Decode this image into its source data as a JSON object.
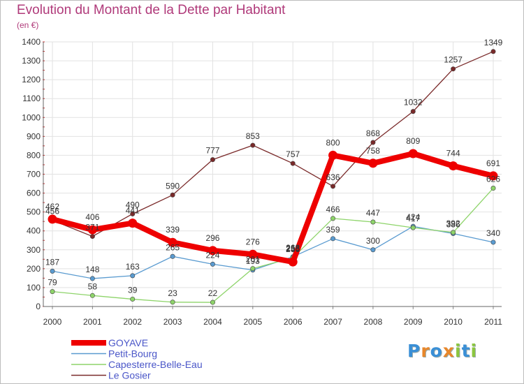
{
  "title": "Evolution du Montant de la Dette par Habitant",
  "subtitle": "(en €)",
  "logo": {
    "letters": [
      "P",
      "r",
      "o",
      "x",
      "i",
      "t",
      "i"
    ],
    "colors": [
      "#3a8fd6",
      "#e8872b",
      "#3a8fd6",
      "#e8872b",
      "#8cc63f",
      "#3a8fd6",
      "#8cc63f"
    ]
  },
  "chart_data": {
    "type": "line",
    "title": "Evolution du Montant de la Dette par Habitant",
    "ylabel": "(en €)",
    "xlabel": "",
    "x": [
      "2000",
      "2001",
      "2002",
      "2003",
      "2004",
      "2005",
      "2006",
      "2007",
      "2008",
      "2009",
      "2010",
      "2011"
    ],
    "ylim": [
      0,
      1400
    ],
    "yticks": [
      0,
      100,
      200,
      300,
      400,
      500,
      600,
      700,
      800,
      900,
      1000,
      1100,
      1200,
      1300,
      1400
    ],
    "grid": true,
    "legend": "bottom-left",
    "series": [
      {
        "name": "Le Gosier",
        "color": "#7a2a2a",
        "values": [
          456,
          371,
          490,
          590,
          777,
          853,
          757,
          636,
          868,
          1032,
          1257,
          1349
        ],
        "labels": [
          "456",
          "371",
          "490",
          "590",
          "777",
          "853",
          "757",
          "636",
          "868",
          "1032",
          "1257",
          "1349"
        ]
      },
      {
        "name": "Petit-Bourg",
        "color": "#5a9bd0",
        "values": [
          187,
          148,
          163,
          265,
          224,
          193,
          263,
          359,
          300,
          424,
          386,
          340
        ],
        "labels": [
          "187",
          "148",
          "163",
          "265",
          "224",
          "193",
          "263",
          "359",
          "300",
          "424",
          "386",
          "340"
        ]
      },
      {
        "name": "Capesterre-Belle-Eau",
        "color": "#8ed46a",
        "values": [
          79,
          58,
          39,
          23,
          22,
          201,
          258,
          466,
          447,
          417,
          392,
          626
        ],
        "labels": [
          "79",
          "58",
          "39",
          "23",
          "22",
          "201",
          "258",
          "466",
          "447",
          "417",
          "392",
          "626"
        ]
      },
      {
        "name": "GOYAVE",
        "color": "#ee0000",
        "values": [
          462,
          406,
          441,
          339,
          296,
          276,
          236,
          800,
          758,
          809,
          744,
          691
        ],
        "labels": [
          "462",
          "406",
          "441",
          "339",
          "296",
          "276",
          "236",
          "800",
          "758",
          "809",
          "744",
          "691"
        ]
      }
    ],
    "legend_order": [
      "GOYAVE",
      "Petit-Bourg",
      "Capesterre-Belle-Eau",
      "Le Gosier"
    ]
  }
}
